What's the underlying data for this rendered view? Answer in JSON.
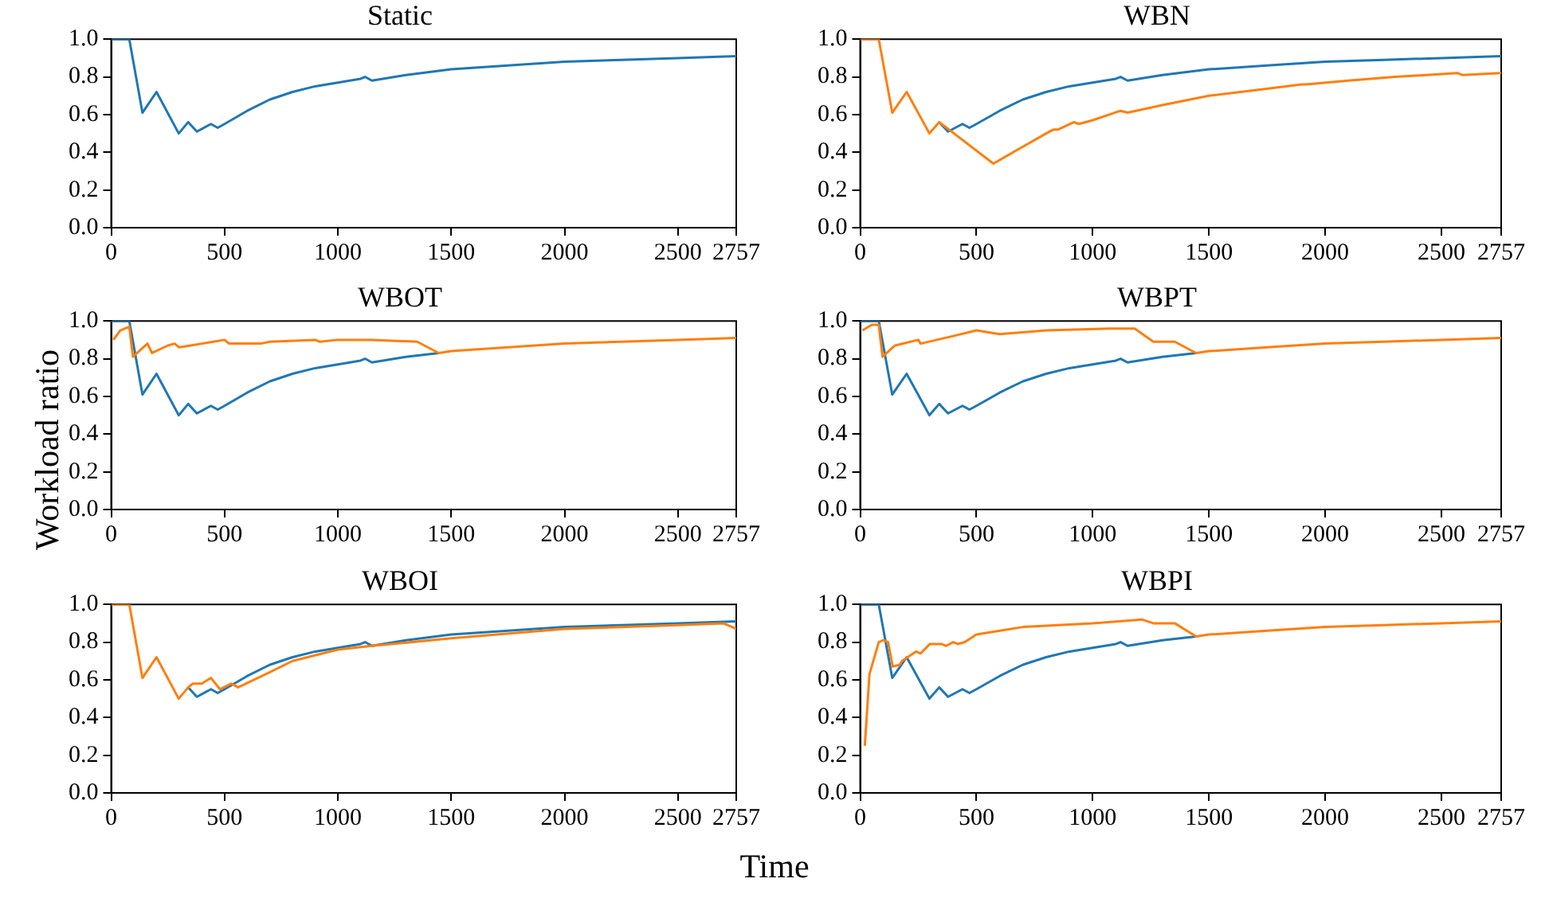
{
  "chart_data": [
    {
      "type": "line",
      "title": "Static",
      "legend": false,
      "marker": "none",
      "line_style": "solid",
      "xlim": [
        0,
        2757
      ],
      "xticks": [
        0,
        500,
        1000,
        1500,
        2000,
        2500,
        2757
      ],
      "ylim": [
        0,
        1
      ],
      "yticks": [
        {
          "value": 0,
          "label": "0.0"
        },
        {
          "value": 0.2,
          "label": "0.2"
        },
        {
          "value": 0.4,
          "label": "0.4"
        },
        {
          "value": 0.6,
          "label": "0.6"
        },
        {
          "value": 0.8,
          "label": "0.8"
        },
        {
          "value": 1,
          "label": "1.0"
        }
      ],
      "series": [
        {
          "color": "#1f77b4",
          "x": [
            0,
            80,
            138,
            200,
            298,
            340,
            378,
            440,
            470,
            500,
            600,
            700,
            800,
            900,
            1000,
            1100,
            1120,
            1150,
            1300,
            1500,
            1750,
            2000,
            2250,
            2500,
            2757
          ],
          "values": [
            1,
            1,
            0.61,
            0.72,
            0.5,
            0.56,
            0.51,
            0.55,
            0.53,
            0.55,
            0.62,
            0.68,
            0.72,
            0.75,
            0.77,
            0.79,
            0.8,
            0.78,
            0.81,
            0.84,
            0.86,
            0.88,
            0.89,
            0.9,
            0.91
          ]
        }
      ]
    },
    {
      "type": "line",
      "title": "WBN",
      "legend": false,
      "marker": "none",
      "line_style": "solid",
      "xlim": [
        0,
        2757
      ],
      "xticks": [
        0,
        500,
        1000,
        1500,
        2000,
        2500,
        2757
      ],
      "ylim": [
        0,
        1
      ],
      "yticks": [
        {
          "value": 0,
          "label": "0.0"
        },
        {
          "value": 0.2,
          "label": "0.2"
        },
        {
          "value": 0.4,
          "label": "0.4"
        },
        {
          "value": 0.6,
          "label": "0.6"
        },
        {
          "value": 0.8,
          "label": "0.8"
        },
        {
          "value": 1,
          "label": "1.0"
        }
      ],
      "series": [
        {
          "color": "#1f77b4",
          "x": [
            340,
            378,
            440,
            470,
            500,
            600,
            700,
            800,
            900,
            1000,
            1100,
            1120,
            1150,
            1300,
            1500,
            1750,
            2000,
            2250,
            2500,
            2757
          ],
          "values": [
            0.56,
            0.51,
            0.55,
            0.53,
            0.55,
            0.62,
            0.68,
            0.72,
            0.75,
            0.77,
            0.79,
            0.8,
            0.78,
            0.81,
            0.84,
            0.86,
            0.88,
            0.89,
            0.9,
            0.91
          ]
        },
        {
          "color": "#ff7f0e",
          "x": [
            0,
            80,
            138,
            200,
            298,
            340,
            573,
            700,
            800,
            830,
            850,
            920,
            940,
            1000,
            1120,
            1150,
            1300,
            1500,
            1700,
            1900,
            1920,
            2100,
            2300,
            2570,
            2590,
            2757
          ],
          "values": [
            1,
            1,
            0.61,
            0.72,
            0.5,
            0.56,
            0.34,
            0.43,
            0.5,
            0.52,
            0.52,
            0.56,
            0.55,
            0.57,
            0.62,
            0.61,
            0.65,
            0.7,
            0.73,
            0.76,
            0.76,
            0.78,
            0.8,
            0.82,
            0.81,
            0.82
          ]
        }
      ]
    },
    {
      "type": "line",
      "title": "WBOT",
      "ylabel": "Workload ratio",
      "legend": false,
      "marker": "none",
      "line_style": "solid",
      "xlim": [
        0,
        2757
      ],
      "xticks": [
        0,
        500,
        1000,
        1500,
        2000,
        2500,
        2757
      ],
      "ylim": [
        0,
        1
      ],
      "yticks": [
        {
          "value": 0,
          "label": "0.0"
        },
        {
          "value": 0.2,
          "label": "0.2"
        },
        {
          "value": 0.4,
          "label": "0.4"
        },
        {
          "value": 0.6,
          "label": "0.6"
        },
        {
          "value": 0.8,
          "label": "0.8"
        },
        {
          "value": 1,
          "label": "1.0"
        }
      ],
      "series": [
        {
          "color": "#1f77b4",
          "x": [
            0,
            80,
            138,
            200,
            298,
            340,
            378,
            440,
            470,
            500,
            600,
            700,
            800,
            900,
            1000,
            1100,
            1120,
            1150,
            1300,
            1445
          ],
          "values": [
            1,
            1,
            0.61,
            0.72,
            0.5,
            0.56,
            0.51,
            0.55,
            0.53,
            0.55,
            0.62,
            0.68,
            0.72,
            0.75,
            0.77,
            0.79,
            0.8,
            0.78,
            0.81,
            0.83
          ]
        },
        {
          "color": "#ff7f0e",
          "x": [
            10,
            40,
            80,
            96,
            160,
            180,
            250,
            280,
            300,
            350,
            400,
            450,
            500,
            520,
            650,
            660,
            700,
            900,
            920,
            1000,
            1100,
            1150,
            1350,
            1445,
            1500,
            1750,
            2000,
            2250,
            2500,
            2757
          ],
          "values": [
            0.9,
            0.95,
            0.97,
            0.81,
            0.88,
            0.83,
            0.87,
            0.88,
            0.86,
            0.87,
            0.88,
            0.89,
            0.9,
            0.88,
            0.88,
            0.88,
            0.89,
            0.9,
            0.89,
            0.9,
            0.9,
            0.9,
            0.89,
            0.83,
            0.84,
            0.86,
            0.88,
            0.89,
            0.9,
            0.91
          ]
        }
      ]
    },
    {
      "type": "line",
      "title": "WBPT",
      "legend": false,
      "marker": "none",
      "line_style": "solid",
      "xlim": [
        0,
        2757
      ],
      "xticks": [
        0,
        500,
        1000,
        1500,
        2000,
        2500,
        2757
      ],
      "ylim": [
        0,
        1
      ],
      "yticks": [
        {
          "value": 0,
          "label": "0.0"
        },
        {
          "value": 0.2,
          "label": "0.2"
        },
        {
          "value": 0.4,
          "label": "0.4"
        },
        {
          "value": 0.6,
          "label": "0.6"
        },
        {
          "value": 0.8,
          "label": "0.8"
        },
        {
          "value": 1,
          "label": "1.0"
        }
      ],
      "series": [
        {
          "color": "#1f77b4",
          "x": [
            0,
            80,
            138,
            200,
            298,
            340,
            378,
            440,
            470,
            500,
            600,
            700,
            800,
            900,
            1000,
            1100,
            1120,
            1150,
            1300,
            1445
          ],
          "values": [
            1,
            1,
            0.61,
            0.72,
            0.5,
            0.56,
            0.51,
            0.55,
            0.53,
            0.55,
            0.62,
            0.68,
            0.72,
            0.75,
            0.77,
            0.79,
            0.8,
            0.78,
            0.81,
            0.83
          ]
        },
        {
          "color": "#ff7f0e",
          "x": [
            10,
            50,
            80,
            96,
            150,
            250,
            260,
            400,
            500,
            600,
            800,
            1070,
            1181,
            1261,
            1353,
            1445,
            1500,
            1750,
            2000,
            2250,
            2500,
            2757
          ],
          "values": [
            0.95,
            0.98,
            0.98,
            0.81,
            0.87,
            0.9,
            0.88,
            0.92,
            0.95,
            0.93,
            0.95,
            0.96,
            0.96,
            0.89,
            0.89,
            0.83,
            0.84,
            0.86,
            0.88,
            0.89,
            0.9,
            0.91
          ]
        }
      ]
    },
    {
      "type": "line",
      "title": "WBOI",
      "xlabel": "Time",
      "legend": false,
      "marker": "none",
      "line_style": "solid",
      "xlim": [
        0,
        2757
      ],
      "xticks": [
        0,
        500,
        1000,
        1500,
        2000,
        2500,
        2757
      ],
      "ylim": [
        0,
        1
      ],
      "yticks": [
        {
          "value": 0,
          "label": "0.0"
        },
        {
          "value": 0.2,
          "label": "0.2"
        },
        {
          "value": 0.4,
          "label": "0.4"
        },
        {
          "value": 0.6,
          "label": "0.6"
        },
        {
          "value": 0.8,
          "label": "0.8"
        },
        {
          "value": 1,
          "label": "1.0"
        }
      ],
      "series": [
        {
          "color": "#1f77b4",
          "x": [
            340,
            378,
            440,
            470,
            500,
            600,
            700,
            800,
            900,
            1000,
            1100,
            1120,
            1150,
            1300,
            1500,
            1750,
            2000,
            2250,
            2500,
            2757
          ],
          "values": [
            0.56,
            0.51,
            0.55,
            0.53,
            0.55,
            0.62,
            0.68,
            0.72,
            0.75,
            0.77,
            0.79,
            0.8,
            0.78,
            0.81,
            0.84,
            0.86,
            0.88,
            0.89,
            0.9,
            0.91
          ]
        },
        {
          "color": "#ff7f0e",
          "x": [
            0,
            80,
            138,
            200,
            298,
            340,
            360,
            400,
            440,
            480,
            530,
            560,
            700,
            800,
            1000,
            1150,
            1500,
            2000,
            2500,
            2700,
            2757
          ],
          "values": [
            1,
            1,
            0.61,
            0.72,
            0.5,
            0.56,
            0.58,
            0.58,
            0.61,
            0.55,
            0.58,
            0.56,
            0.64,
            0.7,
            0.76,
            0.78,
            0.82,
            0.87,
            0.89,
            0.9,
            0.87
          ]
        }
      ]
    },
    {
      "type": "line",
      "title": "WBPI",
      "legend": false,
      "marker": "none",
      "line_style": "solid",
      "xlim": [
        0,
        2757
      ],
      "xticks": [
        0,
        500,
        1000,
        1500,
        2000,
        2500,
        2757
      ],
      "ylim": [
        0,
        1
      ],
      "yticks": [
        {
          "value": 0,
          "label": "0.0"
        },
        {
          "value": 0.2,
          "label": "0.2"
        },
        {
          "value": 0.4,
          "label": "0.4"
        },
        {
          "value": 0.6,
          "label": "0.6"
        },
        {
          "value": 0.8,
          "label": "0.8"
        },
        {
          "value": 1,
          "label": "1.0"
        }
      ],
      "series": [
        {
          "color": "#1f77b4",
          "x": [
            0,
            80,
            138,
            200,
            298,
            340,
            378,
            440,
            470,
            500,
            600,
            700,
            800,
            900,
            1000,
            1100,
            1120,
            1150,
            1300,
            1445
          ],
          "values": [
            1,
            1,
            0.61,
            0.72,
            0.5,
            0.56,
            0.51,
            0.55,
            0.53,
            0.55,
            0.62,
            0.68,
            0.72,
            0.75,
            0.77,
            0.79,
            0.8,
            0.78,
            0.81,
            0.83
          ]
        },
        {
          "color": "#ff7f0e",
          "x": [
            20,
            40,
            80,
            100,
            120,
            140,
            170,
            180,
            240,
            260,
            300,
            350,
            370,
            400,
            420,
            450,
            500,
            700,
            1000,
            1211,
            1261,
            1353,
            1445,
            1500,
            1750,
            2000,
            2250,
            2500,
            2757
          ],
          "values": [
            0.25,
            0.63,
            0.8,
            0.81,
            0.8,
            0.67,
            0.68,
            0.7,
            0.75,
            0.74,
            0.79,
            0.79,
            0.78,
            0.8,
            0.79,
            0.8,
            0.84,
            0.88,
            0.9,
            0.92,
            0.9,
            0.9,
            0.83,
            0.84,
            0.86,
            0.88,
            0.89,
            0.9,
            0.91
          ]
        }
      ]
    }
  ]
}
